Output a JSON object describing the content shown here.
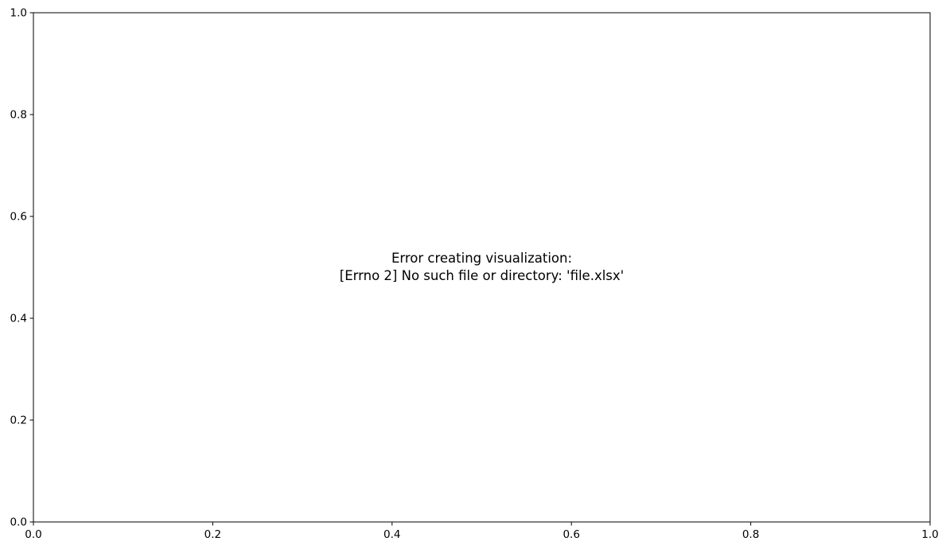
{
  "chart_data": {
    "type": "scatter",
    "title": "",
    "xlabel": "",
    "ylabel": "",
    "xlim": [
      0,
      1
    ],
    "ylim": [
      0,
      1
    ],
    "x_ticks": [
      "0.0",
      "0.2",
      "0.4",
      "0.6",
      "0.8",
      "1.0"
    ],
    "y_ticks": [
      "0.0",
      "0.2",
      "0.4",
      "0.6",
      "0.8",
      "1.0"
    ],
    "grid": false,
    "series": [],
    "annotation": {
      "lines": [
        "Error creating visualization:",
        "[Errno 2] No such file or directory: 'file.xlsx'"
      ]
    }
  },
  "colors": {
    "axes": "#000000",
    "background": "#ffffff",
    "text": "#000000"
  }
}
